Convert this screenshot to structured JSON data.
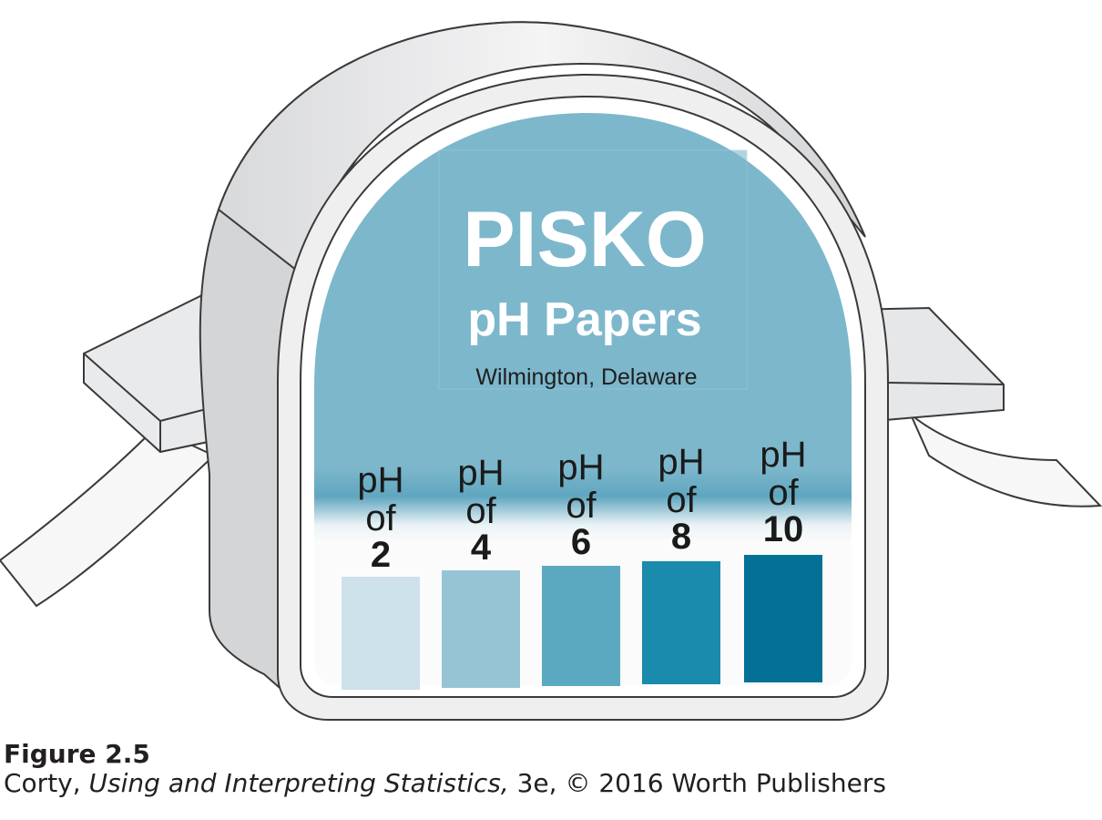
{
  "label": {
    "brand": "PISKO",
    "product": "pH Papers",
    "location": "Wilmington, Delaware"
  },
  "ph_scale": [
    {
      "word_ph": "pH",
      "word_of": "of",
      "value": "2",
      "color": "#cde1ea"
    },
    {
      "word_ph": "pH",
      "word_of": "of",
      "value": "4",
      "color": "#97c4d5"
    },
    {
      "word_ph": "pH",
      "word_of": "of",
      "value": "6",
      "color": "#5ba8c1"
    },
    {
      "word_ph": "pH",
      "word_of": "of",
      "value": "8",
      "color": "#1a8aad"
    },
    {
      "word_ph": "pH",
      "word_of": "of",
      "value": "10",
      "color": "#037096"
    }
  ],
  "colors": {
    "label_blue": "#7db7cc",
    "dispenser_white": "#f3f3f4",
    "dispenser_shadow": "#c9cacc"
  },
  "caption": {
    "figure": "Figure 2.5",
    "author": "Corty, ",
    "book": "Using and Interpreting Statistics,",
    "rest": " 3e, © 2016 Worth Publishers"
  }
}
